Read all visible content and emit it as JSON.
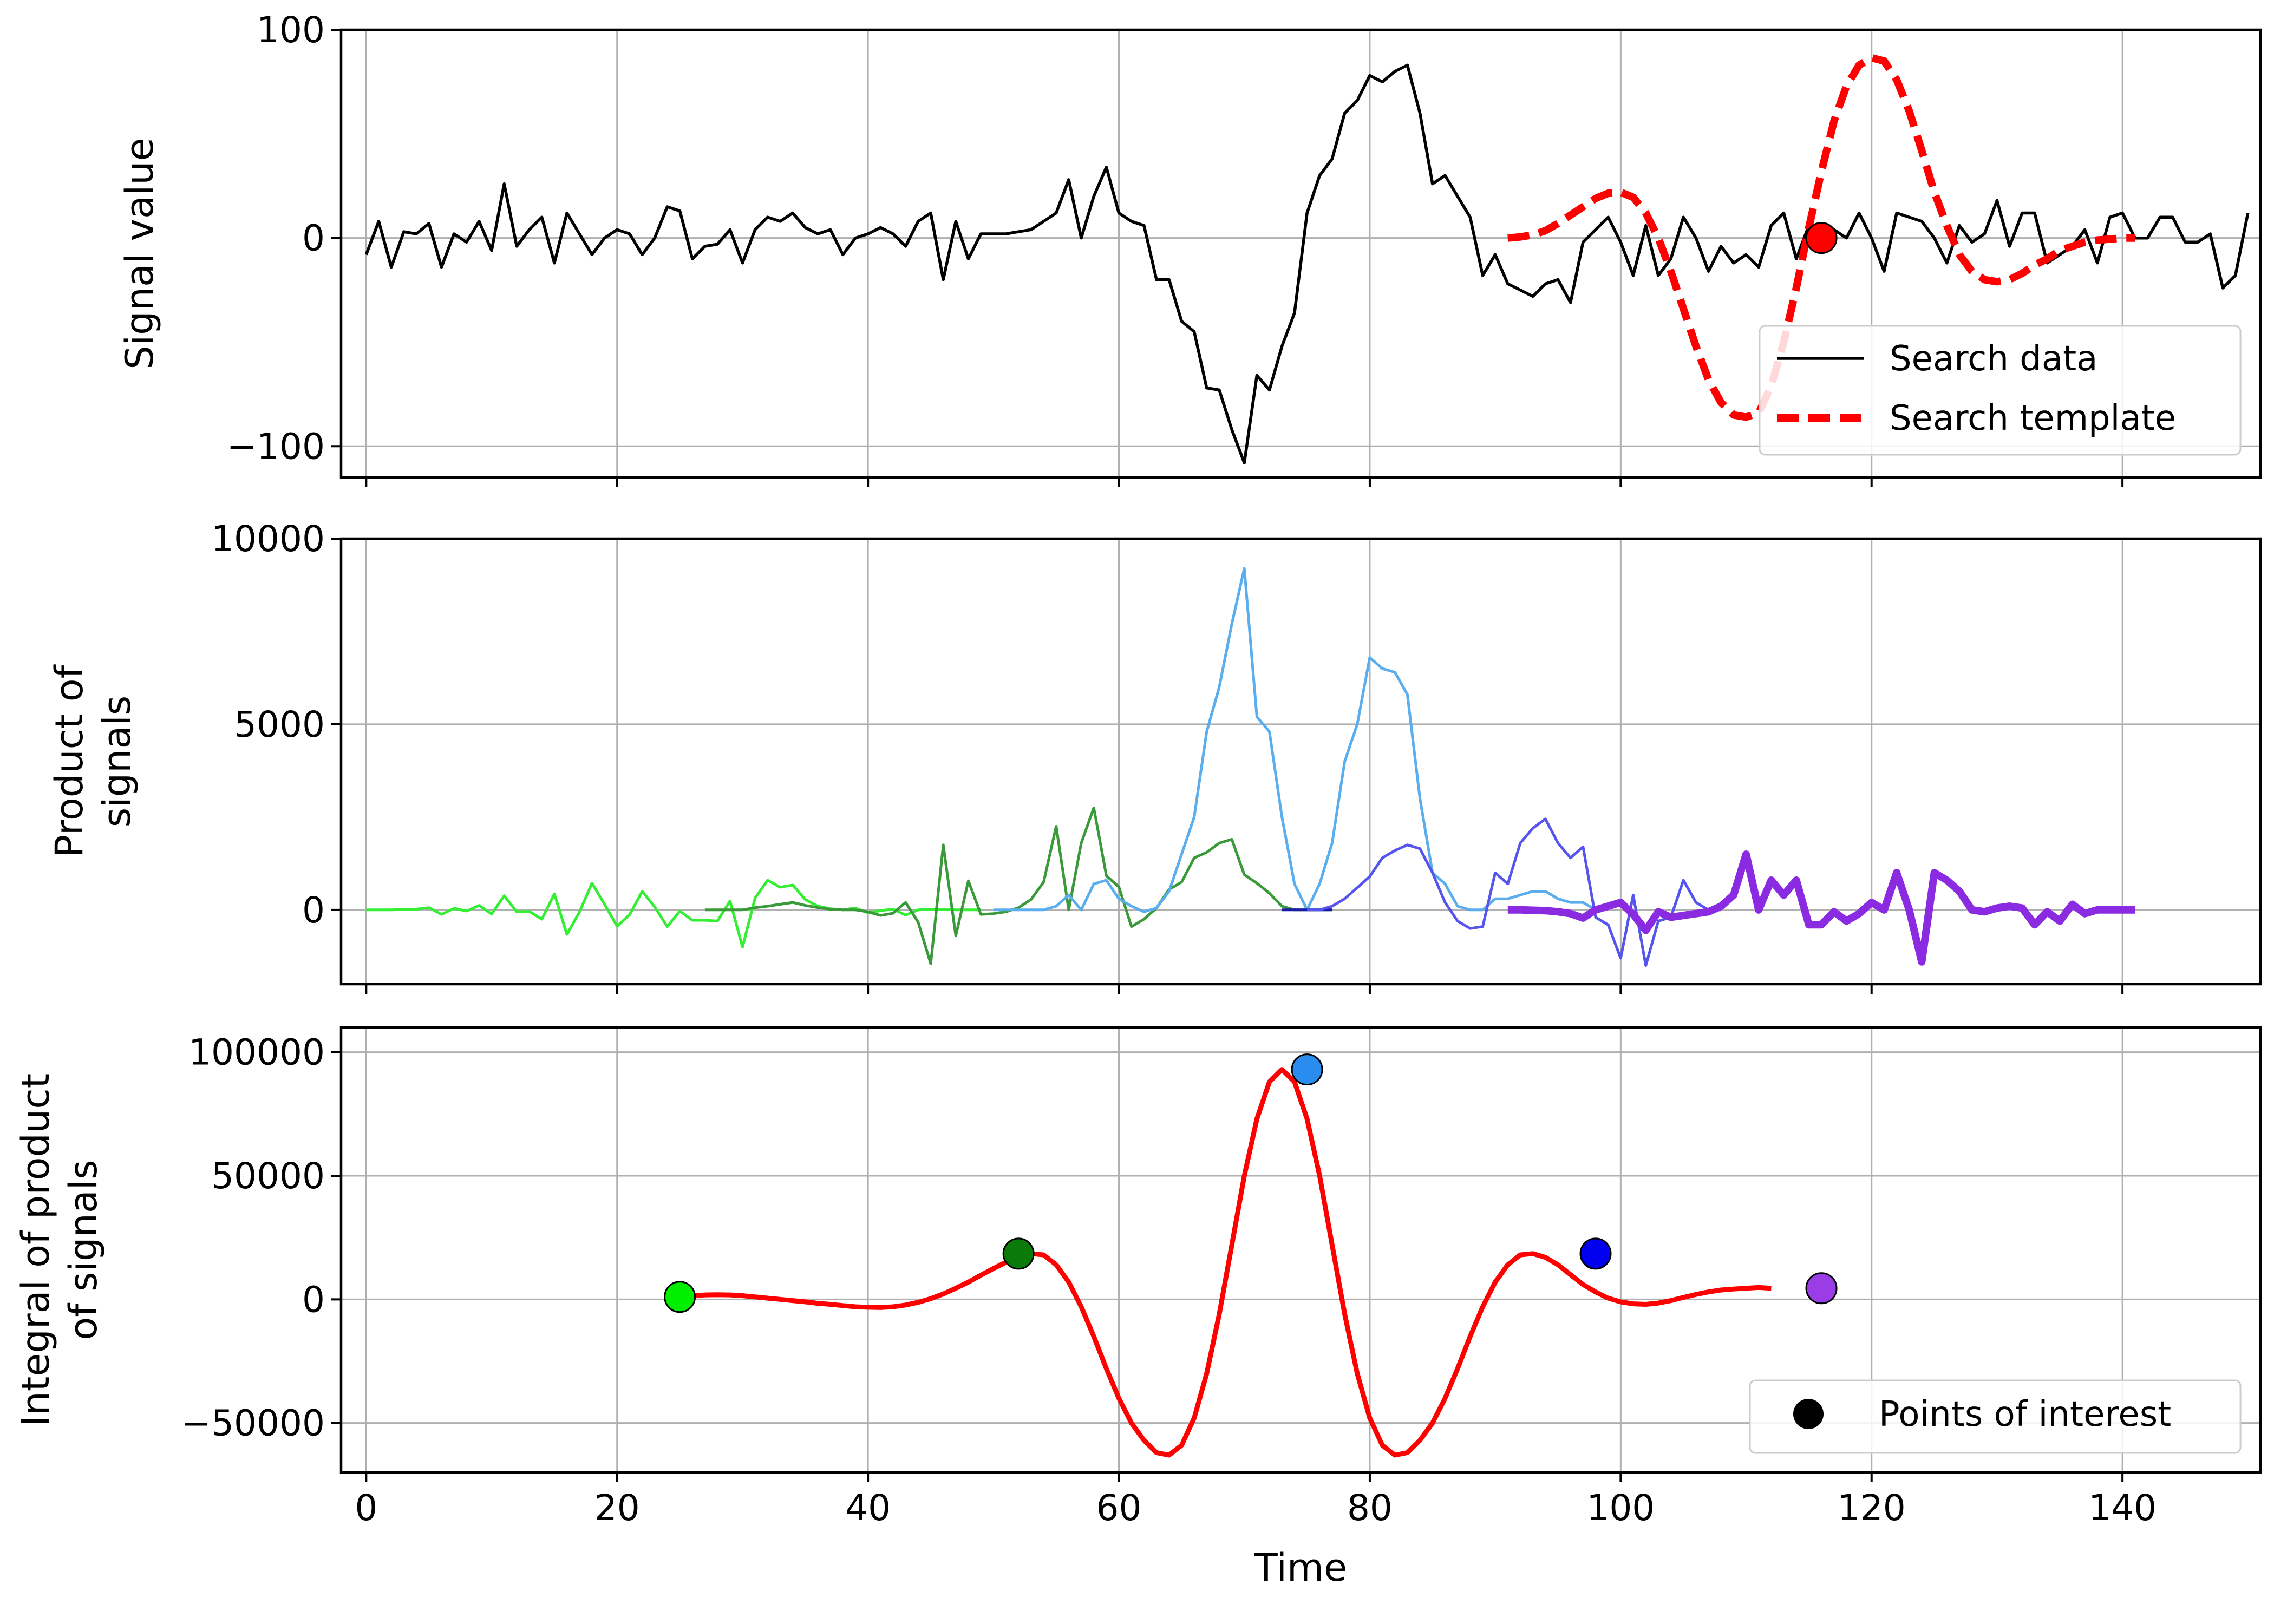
{
  "chart_data": [
    {
      "type": "line",
      "panel": "top",
      "xlabel": "",
      "ylabel": "Signal value",
      "xlim": [
        -2,
        151
      ],
      "ylim": [
        -115,
        100
      ],
      "xticks": [
        0,
        20,
        40,
        60,
        80,
        100,
        120,
        140
      ],
      "yticks": [
        {
          "value": -100,
          "label": "−100"
        },
        {
          "value": 0,
          "label": "0"
        },
        {
          "value": 100,
          "label": "100"
        }
      ],
      "grid": true,
      "legend_position": "lower-right",
      "series": [
        {
          "name": "Search data",
          "style": "solid",
          "color": "#000000",
          "x_start": 0,
          "values": [
            -8,
            8,
            -14,
            3,
            2,
            7,
            -14,
            2,
            -2,
            8,
            -6,
            26,
            -4,
            4,
            10,
            -12,
            12,
            2,
            -8,
            0,
            4,
            2,
            -8,
            0,
            15,
            13,
            -10,
            -4,
            -3,
            4,
            -12,
            4,
            10,
            8,
            12,
            5,
            2,
            4,
            -8,
            0,
            2,
            5,
            2,
            -4,
            8,
            12,
            -20,
            8,
            -10,
            2,
            2,
            2,
            3,
            4,
            8,
            12,
            28,
            0,
            20,
            34,
            12,
            8,
            6,
            -20,
            -20,
            -40,
            -45,
            -72,
            -73,
            -92,
            -108,
            -66,
            -73,
            -52,
            -36,
            12,
            30,
            38,
            60,
            66,
            78,
            75,
            80,
            83,
            60,
            26,
            30,
            20,
            10,
            -18,
            -8,
            -22,
            -25,
            -28,
            -22,
            -20,
            -31,
            -2,
            4,
            10,
            -2,
            -18,
            6,
            -18,
            -10,
            10,
            0,
            -16,
            -4,
            -12,
            -8,
            -14,
            6,
            12,
            -10,
            6,
            -6,
            4,
            0,
            12,
            0,
            -16,
            12,
            10,
            8,
            0,
            -12,
            6,
            -2,
            2,
            18,
            -4,
            12,
            12,
            -12,
            -8,
            -4,
            4,
            -12,
            10,
            12,
            0,
            0,
            10,
            10,
            -2,
            -2,
            2,
            -24,
            -18,
            12
          ]
        },
        {
          "name": "Search template",
          "style": "dashed",
          "color": "#ff0000",
          "x": [
            91,
            92,
            93,
            94,
            95,
            96,
            97,
            98,
            99,
            100,
            101,
            102,
            103,
            104,
            105,
            106,
            107,
            108,
            109,
            110,
            111,
            112,
            113,
            114,
            115,
            116,
            117,
            118,
            119,
            120,
            121,
            122,
            123,
            124,
            125,
            126,
            127,
            128,
            129,
            130,
            131,
            132,
            133,
            134,
            135,
            136,
            137,
            138,
            139,
            140,
            141
          ],
          "y": [
            0,
            0.5,
            1.5,
            3.5,
            7,
            11,
            15,
            19,
            21.5,
            22,
            19.5,
            12,
            0,
            -16,
            -34,
            -52,
            -68,
            -79,
            -85,
            -86,
            -84,
            -71,
            -50,
            -24,
            5,
            32,
            56,
            73,
            83,
            86.5,
            85,
            76,
            61,
            42,
            22,
            6,
            -8,
            -16,
            -20,
            -21,
            -20,
            -17,
            -13,
            -10,
            -6,
            -4,
            -2,
            -1,
            -0.5,
            0,
            0
          ]
        }
      ],
      "marker": {
        "x": 116,
        "y": 0,
        "color": "#ff0000"
      }
    },
    {
      "type": "line",
      "panel": "middle",
      "xlabel": "",
      "ylabel_lines": [
        "Product of",
        "signals"
      ],
      "xlim": [
        -2,
        151
      ],
      "ylim": [
        -2000,
        10000
      ],
      "xticks": [
        0,
        20,
        40,
        60,
        80,
        100,
        120,
        140
      ],
      "yticks": [
        {
          "value": 0,
          "label": "0"
        },
        {
          "value": 5000,
          "label": "5000"
        },
        {
          "value": 10000,
          "label": "10000"
        }
      ],
      "grid": true,
      "series": [
        {
          "color": "#33ee33",
          "width": 5,
          "x_start": 0,
          "values": [
            0,
            0,
            0,
            10,
            20,
            60,
            -120,
            40,
            -30,
            120,
            -110,
            380,
            -50,
            -40,
            -250,
            430,
            -660,
            -60,
            720,
            150,
            -440,
            -130,
            500,
            80,
            -450,
            -30,
            -280,
            -280,
            -300,
            240,
            -1000,
            320,
            800,
            610,
            670,
            280,
            100,
            30,
            0,
            50,
            -80,
            -20,
            20,
            -140,
            0,
            20,
            20,
            0,
            0,
            0
          ]
        },
        {
          "color": "#3a9a3a",
          "width": 5,
          "x_start": 27,
          "values": [
            0,
            0,
            0,
            0,
            60,
            100,
            150,
            200,
            120,
            60,
            20,
            0,
            0,
            -50,
            -150,
            -90,
            200,
            -330,
            -1450,
            1750,
            -700,
            780,
            -120,
            -100,
            -50,
            60,
            280,
            750,
            2250,
            0,
            1800,
            2750,
            920,
            620,
            -450,
            -250,
            50,
            550,
            750,
            1400,
            1550,
            1800,
            1900,
            950,
            720,
            450,
            100,
            0,
            0,
            0,
            0
          ]
        },
        {
          "color": "#5aaeee",
          "width": 5,
          "x_start": 50,
          "values": [
            0,
            0,
            0,
            0,
            0,
            100,
            400,
            0,
            700,
            800,
            300,
            100,
            -50,
            50,
            500,
            1500,
            2500,
            4800,
            6000,
            7700,
            9200,
            5200,
            4800,
            2500,
            700,
            0,
            700,
            1800,
            4000,
            5000,
            6800,
            6500,
            6400,
            5800,
            3000,
            1000,
            700,
            100,
            0,
            0,
            300,
            300,
            400,
            500,
            500,
            300,
            200,
            200,
            0
          ]
        },
        {
          "color": "#1a1aaa",
          "width": 5,
          "x_start": 73,
          "values": [
            0,
            0,
            0,
            0,
            0
          ]
        },
        {
          "color": "#5555ee",
          "width": 5,
          "x_start": 75,
          "values": [
            0,
            0,
            100,
            300,
            600,
            900,
            1400,
            1600,
            1750,
            1650,
            1000,
            200,
            -300,
            -500,
            -450,
            1000,
            700,
            1800,
            2200,
            2450,
            1800,
            1400,
            1700,
            -200,
            -400,
            -1300,
            400,
            -1500,
            -300,
            -200,
            800,
            200,
            0,
            0
          ]
        },
        {
          "color": "#8a2be2",
          "width": 14,
          "x_start": 91,
          "values": [
            0,
            0,
            -10,
            -20,
            -50,
            -100,
            -220,
            0,
            100,
            200,
            -120,
            -550,
            -50,
            -200,
            -150,
            -100,
            -50,
            100,
            400,
            1500,
            0,
            800,
            400,
            800,
            -400,
            -400,
            -50,
            -300,
            -100,
            200,
            0,
            1000,
            0,
            -1400,
            1000,
            800,
            500,
            0,
            -50,
            50,
            100,
            50,
            -400,
            -50,
            -300,
            150,
            -100,
            0,
            0,
            0,
            0
          ]
        }
      ]
    },
    {
      "type": "line",
      "panel": "bottom",
      "xlabel": "Time",
      "ylabel_lines": [
        "Integral of product",
        "of signals"
      ],
      "xlim": [
        -2,
        151
      ],
      "ylim": [
        -70000,
        110000
      ],
      "xticks": [
        0,
        20,
        40,
        60,
        80,
        100,
        120,
        140
      ],
      "yticks": [
        {
          "value": -50000,
          "label": "−50000"
        },
        {
          "value": 0,
          "label": "0"
        },
        {
          "value": 50000,
          "label": "50000"
        },
        {
          "value": 100000,
          "label": "100000"
        }
      ],
      "grid": true,
      "legend_position": "lower-right",
      "series": [
        {
          "color": "#ff0000",
          "x_start": 25,
          "values": [
            1000,
            1500,
            1800,
            1900,
            1800,
            1500,
            1000,
            500,
            0,
            -500,
            -1000,
            -1600,
            -2000,
            -2500,
            -3000,
            -3200,
            -3300,
            -3000,
            -2300,
            -1200,
            300,
            2200,
            4500,
            7000,
            9800,
            12500,
            15000,
            17000,
            18500,
            18000,
            14000,
            7000,
            -3000,
            -15000,
            -28000,
            -40000,
            -50000,
            -57000,
            -62000,
            -63000,
            -59000,
            -48000,
            -30000,
            -6000,
            22000,
            50000,
            73000,
            88000,
            93000,
            88000,
            73000,
            50000,
            22000,
            -6000,
            -30000,
            -48000,
            -59000,
            -63000,
            -62000,
            -57000,
            -50000,
            -40000,
            -28000,
            -15000,
            -3000,
            7000,
            14000,
            18000,
            18500,
            17000,
            14000,
            10000,
            6000,
            3000,
            500,
            -1000,
            -1800,
            -2000,
            -1500,
            -500,
            800,
            2000,
            3000,
            3800,
            4200,
            4500,
            4800,
            4500
          ]
        }
      ],
      "points_of_interest": {
        "legend_label": "Points of interest",
        "points": [
          {
            "x": 25,
            "y": 1000,
            "color": "#00ee00"
          },
          {
            "x": 52,
            "y": 18500,
            "color": "#0a7a0a"
          },
          {
            "x": 75,
            "y": 93000,
            "color": "#2a8cee"
          },
          {
            "x": 98,
            "y": 18500,
            "color": "#0000ee"
          },
          {
            "x": 116,
            "y": 4500,
            "color": "#9b3de6"
          }
        ]
      }
    }
  ]
}
